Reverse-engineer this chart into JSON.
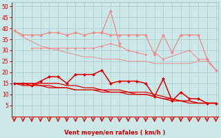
{
  "x": [
    0,
    1,
    2,
    3,
    4,
    5,
    6,
    7,
    8,
    9,
    10,
    11,
    12,
    13,
    14,
    15,
    16,
    17,
    18,
    19,
    20,
    21,
    22,
    23
  ],
  "line_light_top": [
    39,
    37,
    37,
    37,
    38,
    38,
    37,
    38,
    37,
    38,
    38,
    37,
    37,
    37,
    37,
    37,
    28,
    37,
    29,
    37,
    37,
    37,
    26,
    21
  ],
  "line_light_peak": [
    null,
    null,
    null,
    null,
    null,
    null,
    null,
    null,
    null,
    null,
    38,
    48,
    33,
    null,
    null,
    null,
    null,
    null,
    null,
    null,
    null,
    null,
    null,
    null
  ],
  "line_light_diag": [
    39,
    36,
    34,
    32,
    31,
    30,
    29,
    28,
    27,
    27,
    26,
    26,
    26,
    25,
    25,
    25,
    24,
    24,
    24,
    24,
    24,
    25,
    25,
    21
  ],
  "line_light_mid": [
    null,
    null,
    31,
    31,
    31,
    31,
    31,
    31,
    31,
    31,
    32,
    33,
    32,
    30,
    29,
    28,
    null,
    null,
    null,
    null,
    null,
    null,
    null,
    null
  ],
  "line_light_lower": [
    null,
    null,
    null,
    null,
    null,
    null,
    null,
    null,
    null,
    null,
    null,
    null,
    null,
    null,
    null,
    null,
    29,
    26,
    null,
    null,
    30,
    26,
    26,
    21
  ],
  "line_dark_zig": [
    15,
    15,
    14,
    16,
    18,
    18,
    15,
    19,
    19,
    19,
    21,
    15,
    16,
    16,
    16,
    15,
    9,
    17,
    7,
    11,
    8,
    8,
    6,
    6
  ],
  "line_dark_smooth1": [
    15,
    15,
    15,
    15,
    15,
    15,
    14,
    14,
    13,
    13,
    12,
    12,
    12,
    11,
    11,
    11,
    10,
    9,
    8,
    7,
    7,
    6,
    6,
    6
  ],
  "line_dark_smooth2": [
    15,
    15,
    15,
    14,
    14,
    13,
    13,
    12,
    12,
    12,
    11,
    11,
    11,
    10,
    10,
    10,
    9,
    8,
    8,
    7,
    7,
    6,
    6,
    6
  ],
  "line_dark_smooth3": [
    15,
    14,
    14,
    14,
    13,
    13,
    13,
    12,
    12,
    12,
    12,
    11,
    11,
    11,
    10,
    10,
    9,
    8,
    7,
    7,
    6,
    6,
    6,
    6
  ],
  "bg_color": "#cce8e8",
  "grid_color": "#aacccc",
  "light_line_color": "#ee8888",
  "dark_line_color": "#dd0000",
  "xlabel": "Vent moyen/en rafales ( km/h )",
  "xlabel_color": "#cc0000",
  "tick_color": "#cc0000",
  "arrow_color": "#cc0000",
  "ylim": [
    0,
    52
  ],
  "xlim": [
    -0.3,
    23.3
  ],
  "yticks": [
    5,
    10,
    15,
    20,
    25,
    30,
    35,
    40,
    45,
    50
  ]
}
